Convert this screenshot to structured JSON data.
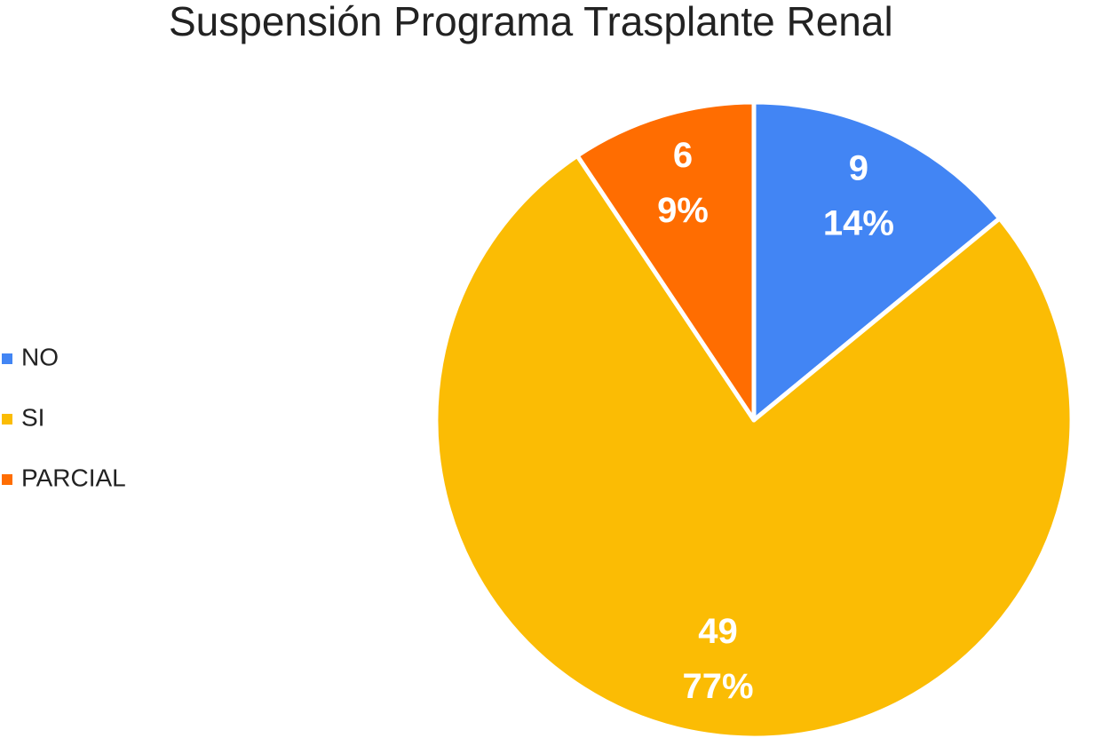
{
  "chart_data": {
    "type": "pie",
    "title": "Suspensión Programa Trasplante Renal",
    "categories": [
      "NO",
      "SI",
      "PARCIAL"
    ],
    "values": [
      9,
      49,
      6
    ],
    "percent_labels": [
      "14%",
      "77%",
      "9%"
    ],
    "colors": [
      "#4285f4",
      "#fbbc04",
      "#ff6d01"
    ],
    "legend": "left"
  }
}
